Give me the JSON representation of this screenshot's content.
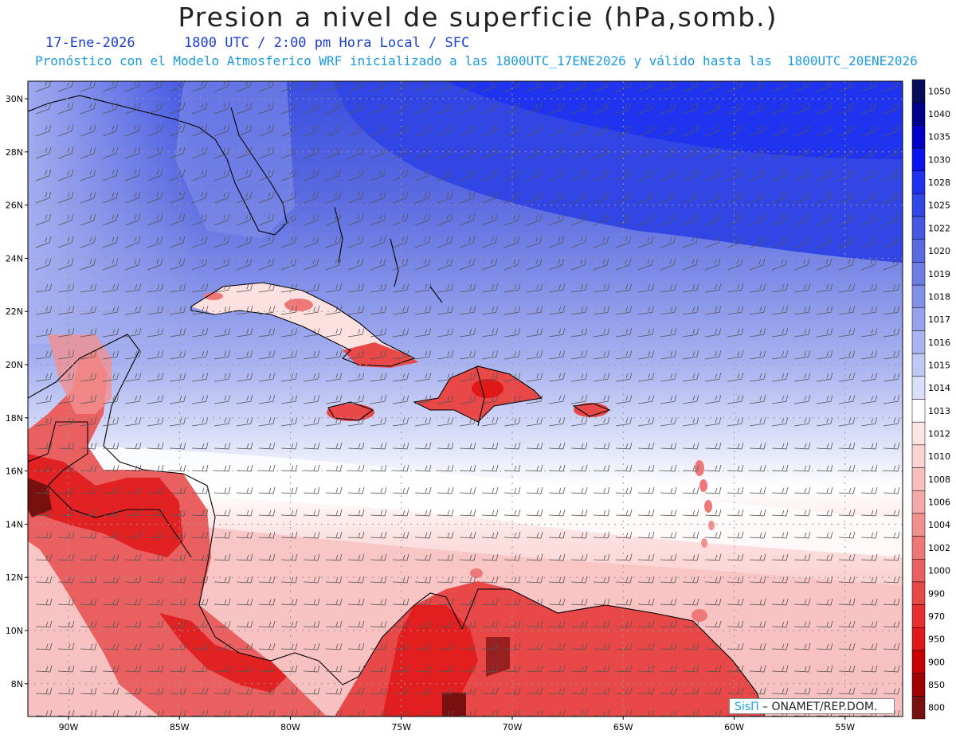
{
  "header": {
    "title": "Presion a nivel de superficie (hPa,somb.)",
    "date": "17-Ene-2026",
    "time": "1800 UTC / 2:00 pm Hora Local / SFC",
    "forecast": "Pronóstico con el Modelo Atmosferico WRF inicializado a las 1800UTC_17ENE2026 y válido hasta las  1800UTC_20ENE2026"
  },
  "axes": {
    "lat_labels": [
      "30N",
      "28N",
      "26N",
      "24N",
      "22N",
      "20N",
      "18N",
      "16N",
      "14N",
      "12N",
      "10N",
      "8N"
    ],
    "lon_labels": [
      "90W",
      "85W",
      "80W",
      "75W",
      "70W",
      "65W",
      "60W",
      "55W"
    ],
    "lat_values": [
      30,
      28,
      26,
      24,
      22,
      20,
      18,
      16,
      14,
      12,
      10,
      8
    ],
    "lon_values": [
      -90,
      -85,
      -80,
      -75,
      -70,
      -65,
      -60,
      -55
    ]
  },
  "colorbar": {
    "levels": [
      "1050",
      "1040",
      "1035",
      "1030",
      "1028",
      "1025",
      "1022",
      "1020",
      "1019",
      "1018",
      "1017",
      "1016",
      "1015",
      "1014",
      "1013",
      "1012",
      "1010",
      "1008",
      "1006",
      "1004",
      "1002",
      "1000",
      "990",
      "970",
      "950",
      "900",
      "850",
      "800"
    ],
    "colors": [
      "#0a0a5c",
      "#00008f",
      "#0000c8",
      "#0a14f0",
      "#1e32f0",
      "#3246e6",
      "#4658e0",
      "#5a6ae0",
      "#6e7ce4",
      "#8290e8",
      "#96a2ec",
      "#aab4f0",
      "#c2c8f4",
      "#dadef8",
      "#ffffff",
      "#ffe4e4",
      "#fcd2d2",
      "#f8bebe",
      "#f4a8a8",
      "#f29090",
      "#ee7878",
      "#ea6060",
      "#e84848",
      "#e63030",
      "#e01818",
      "#c80000",
      "#a00000",
      "#781010"
    ]
  },
  "credit": {
    "brand": "SisΠ",
    "text": " – ONAMET/REP.DOM."
  },
  "colors": {
    "title_color": "#222222",
    "subtitle_color": "#1a3dd6",
    "forecast_color": "#1a9ae0"
  }
}
